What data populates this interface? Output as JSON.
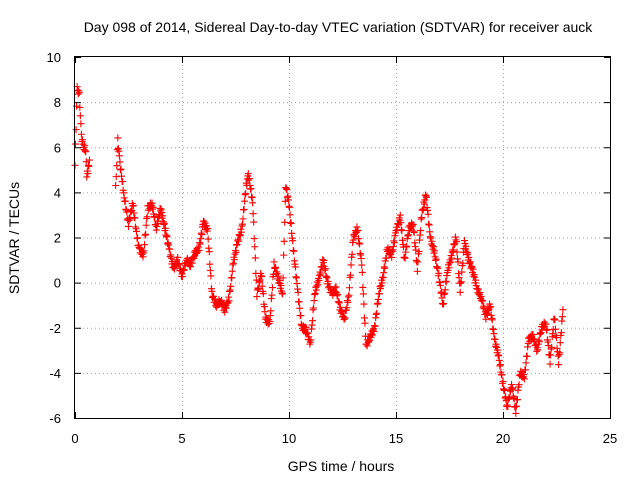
{
  "chart_data": {
    "type": "scatter",
    "title": "Day 098 of 2014, Sidereal Day-to-day VTEC variation (SDTVAR) for receiver auck",
    "xlabel": "GPS time / hours",
    "ylabel": "SDTVAR / TECUs",
    "xlim": [
      0,
      25
    ],
    "ylim": [
      -6,
      10
    ],
    "xticks": [
      0,
      5,
      10,
      15,
      20,
      25
    ],
    "yticks": [
      -6,
      -4,
      -2,
      0,
      2,
      4,
      6,
      8,
      10
    ],
    "grid": true,
    "marker": "+",
    "series_color": "#ff0000",
    "series": [
      {
        "name": "SDTVAR",
        "anchors": [
          [
            0.0,
            5.2
          ],
          [
            0.1,
            8.6
          ],
          [
            0.2,
            8.3
          ],
          [
            0.3,
            6.5
          ],
          [
            0.4,
            6.0
          ],
          [
            0.5,
            5.9
          ],
          [
            0.55,
            4.8
          ],
          [
            0.6,
            4.9
          ],
          [
            0.7,
            5.6
          ],
          [
            1.9,
            4.2
          ],
          [
            2.0,
            6.3
          ],
          [
            2.1,
            5.3
          ],
          [
            2.3,
            3.8
          ],
          [
            2.5,
            2.6
          ],
          [
            2.7,
            3.5
          ],
          [
            2.9,
            2.0
          ],
          [
            3.0,
            1.5
          ],
          [
            3.2,
            1.2
          ],
          [
            3.4,
            3.3
          ],
          [
            3.6,
            3.5
          ],
          [
            3.8,
            2.4
          ],
          [
            4.0,
            3.3
          ],
          [
            4.2,
            2.4
          ],
          [
            4.4,
            1.5
          ],
          [
            4.6,
            0.6
          ],
          [
            4.8,
            1.0
          ],
          [
            5.0,
            0.3
          ],
          [
            5.2,
            1.0
          ],
          [
            5.4,
            0.8
          ],
          [
            5.6,
            1.3
          ],
          [
            5.8,
            1.5
          ],
          [
            6.0,
            2.7
          ],
          [
            6.2,
            2.3
          ],
          [
            6.4,
            -0.5
          ],
          [
            6.6,
            -1.0
          ],
          [
            6.8,
            -0.8
          ],
          [
            7.0,
            -1.2
          ],
          [
            7.2,
            -0.7
          ],
          [
            7.4,
            0.9
          ],
          [
            7.6,
            1.8
          ],
          [
            7.8,
            2.4
          ],
          [
            8.0,
            4.3
          ],
          [
            8.1,
            4.8
          ],
          [
            8.3,
            3.6
          ],
          [
            8.5,
            -0.5
          ],
          [
            8.7,
            0.4
          ],
          [
            8.9,
            -1.6
          ],
          [
            9.1,
            -1.8
          ],
          [
            9.3,
            0.8
          ],
          [
            9.5,
            0.2
          ],
          [
            9.7,
            -0.5
          ],
          [
            9.85,
            4.3
          ],
          [
            10.0,
            3.5
          ],
          [
            10.2,
            1.5
          ],
          [
            10.4,
            -0.3
          ],
          [
            10.6,
            -2.0
          ],
          [
            10.8,
            -2.1
          ],
          [
            11.0,
            -2.7
          ],
          [
            11.2,
            -0.5
          ],
          [
            11.4,
            0.2
          ],
          [
            11.6,
            1.0
          ],
          [
            11.8,
            0.0
          ],
          [
            12.0,
            -0.5
          ],
          [
            12.2,
            -0.3
          ],
          [
            12.4,
            -1.2
          ],
          [
            12.6,
            -1.6
          ],
          [
            12.8,
            -0.5
          ],
          [
            13.0,
            2.0
          ],
          [
            13.2,
            2.4
          ],
          [
            13.4,
            0.8
          ],
          [
            13.6,
            -2.8
          ],
          [
            13.8,
            -2.4
          ],
          [
            14.0,
            -2.0
          ],
          [
            14.2,
            -0.5
          ],
          [
            14.4,
            0.3
          ],
          [
            14.6,
            1.5
          ],
          [
            14.8,
            1.2
          ],
          [
            15.0,
            2.3
          ],
          [
            15.2,
            2.9
          ],
          [
            15.4,
            1.0
          ],
          [
            15.6,
            2.4
          ],
          [
            15.8,
            2.6
          ],
          [
            16.0,
            0.6
          ],
          [
            16.2,
            3.0
          ],
          [
            16.4,
            3.9
          ],
          [
            16.6,
            2.0
          ],
          [
            16.8,
            1.3
          ],
          [
            17.0,
            0.3
          ],
          [
            17.2,
            -1.0
          ],
          [
            17.4,
            0.5
          ],
          [
            17.6,
            1.2
          ],
          [
            17.8,
            2.0
          ],
          [
            18.0,
            -0.4
          ],
          [
            18.2,
            1.8
          ],
          [
            18.4,
            1.0
          ],
          [
            18.6,
            0.5
          ],
          [
            18.8,
            -0.3
          ],
          [
            19.0,
            -0.7
          ],
          [
            19.2,
            -1.5
          ],
          [
            19.4,
            -1.0
          ],
          [
            19.6,
            -2.5
          ],
          [
            19.8,
            -3.3
          ],
          [
            20.0,
            -4.5
          ],
          [
            20.2,
            -5.5
          ],
          [
            20.4,
            -4.5
          ],
          [
            20.6,
            -5.7
          ],
          [
            20.8,
            -4.0
          ],
          [
            21.0,
            -4.2
          ],
          [
            21.2,
            -2.5
          ],
          [
            21.4,
            -2.4
          ],
          [
            21.6,
            -3.0
          ],
          [
            21.8,
            -2.0
          ],
          [
            22.0,
            -1.8
          ],
          [
            22.2,
            -3.5
          ],
          [
            22.4,
            -1.5
          ],
          [
            22.6,
            -3.6
          ],
          [
            22.8,
            -1.2
          ]
        ]
      }
    ]
  }
}
